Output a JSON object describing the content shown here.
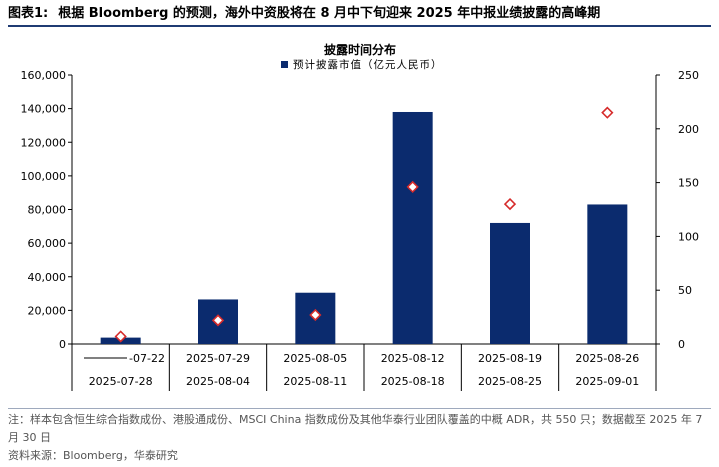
{
  "header": {
    "figure_label": "图表1:",
    "title": "根据 Bloomberg 的预测，海外中资股将在 8 月中下旬迎来 2025 年中报业绩披露的高峰期"
  },
  "chart_data": {
    "type": "bar",
    "title": "披露时间分布",
    "categories": [
      [
        "-07-22",
        "2025-07-28"
      ],
      [
        "2025-07-29",
        "2025-08-04"
      ],
      [
        "2025-08-05",
        "2025-08-11"
      ],
      [
        "2025-08-12",
        "2025-08-18"
      ],
      [
        "2025-08-19",
        "2025-08-25"
      ],
      [
        "2025-08-26",
        "2025-09-01"
      ]
    ],
    "series": [
      {
        "name": "预计披露市值（亿元人民币）",
        "kind": "bar",
        "axis": "left",
        "color": "#0b2b6e",
        "values": [
          3800,
          26500,
          30500,
          138000,
          72000,
          83000
        ]
      },
      {
        "name": "",
        "kind": "marker",
        "marker": "diamond",
        "axis": "right",
        "color": "#d62b2b",
        "values": [
          7,
          22,
          27,
          146,
          130,
          215
        ]
      }
    ],
    "y_left": {
      "min": 0,
      "max": 160000,
      "ticks": [
        0,
        20000,
        40000,
        60000,
        80000,
        100000,
        120000,
        140000,
        160000
      ],
      "tick_labels": [
        "0",
        "20,000",
        "40,000",
        "60,000",
        "80,000",
        "100,000",
        "120,000",
        "140,000",
        "160,000"
      ]
    },
    "y_right": {
      "min": 0,
      "max": 250,
      "ticks": [
        0,
        50,
        100,
        150,
        200,
        250
      ],
      "tick_labels": [
        "0",
        "50",
        "100",
        "150",
        "200",
        "250"
      ]
    },
    "grid": false,
    "legend_position": "top-center"
  },
  "footer": {
    "note": "注：样本包含恒生综合指数成份、港股通成份、MSCI China 指数成份及其他华泰行业团队覆盖的中概 ADR，共 550 只；数据截至 2025 年 7 月 30 日",
    "source": "资料来源：Bloomberg，华泰研究"
  }
}
